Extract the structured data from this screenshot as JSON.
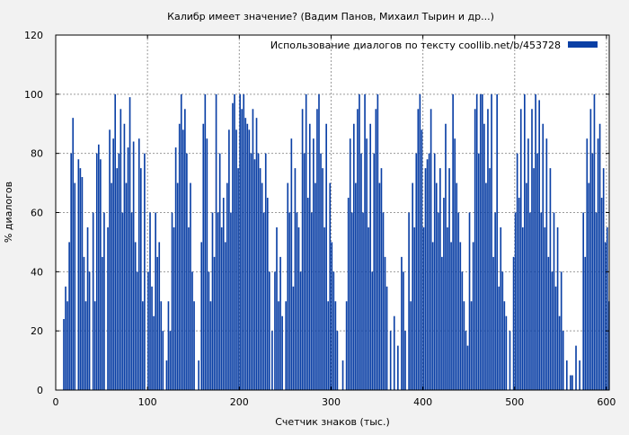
{
  "chart_data": {
    "type": "bar",
    "title": "Калибр имеет значение? (Вадим Панов, Михаил Тырин и др...)",
    "xlabel": "Счетчик знаков (тыс.)",
    "ylabel": "% диалогов",
    "xlim": [
      0,
      603
    ],
    "ylim": [
      0,
      120
    ],
    "xticks": [
      0,
      100,
      200,
      300,
      400,
      500,
      600
    ],
    "yticks": [
      0,
      20,
      40,
      60,
      80,
      100,
      120
    ],
    "grid": true,
    "legend_position": "top-right",
    "series": [
      {
        "name": "Использование диалогов по тексту  coollib.net/b/453728",
        "color": "#0a3fa5",
        "points": [
          [
            8,
            24
          ],
          [
            10,
            35
          ],
          [
            12,
            30
          ],
          [
            14,
            50
          ],
          [
            16,
            80
          ],
          [
            18,
            92
          ],
          [
            20,
            70
          ],
          [
            24,
            78
          ],
          [
            26,
            75
          ],
          [
            28,
            72
          ],
          [
            30,
            45
          ],
          [
            32,
            30
          ],
          [
            34,
            55
          ],
          [
            36,
            40
          ],
          [
            40,
            60
          ],
          [
            42,
            30
          ],
          [
            44,
            80
          ],
          [
            46,
            83
          ],
          [
            48,
            78
          ],
          [
            50,
            45
          ],
          [
            52,
            60
          ],
          [
            56,
            55
          ],
          [
            58,
            88
          ],
          [
            60,
            70
          ],
          [
            62,
            85
          ],
          [
            64,
            100
          ],
          [
            66,
            75
          ],
          [
            68,
            80
          ],
          [
            70,
            95
          ],
          [
            72,
            60
          ],
          [
            74,
            90
          ],
          [
            76,
            70
          ],
          [
            78,
            82
          ],
          [
            80,
            99
          ],
          [
            82,
            60
          ],
          [
            84,
            84
          ],
          [
            86,
            50
          ],
          [
            88,
            40
          ],
          [
            90,
            85
          ],
          [
            92,
            75
          ],
          [
            94,
            30
          ],
          [
            96,
            80
          ],
          [
            100,
            40
          ],
          [
            102,
            60
          ],
          [
            104,
            35
          ],
          [
            106,
            25
          ],
          [
            108,
            60
          ],
          [
            110,
            45
          ],
          [
            112,
            50
          ],
          [
            114,
            30
          ],
          [
            116,
            20
          ],
          [
            120,
            10
          ],
          [
            122,
            30
          ],
          [
            124,
            20
          ],
          [
            126,
            60
          ],
          [
            128,
            55
          ],
          [
            130,
            82
          ],
          [
            132,
            70
          ],
          [
            134,
            90
          ],
          [
            136,
            100
          ],
          [
            138,
            88
          ],
          [
            140,
            95
          ],
          [
            142,
            80
          ],
          [
            144,
            55
          ],
          [
            146,
            70
          ],
          [
            148,
            40
          ],
          [
            150,
            30
          ],
          [
            155,
            10
          ],
          [
            158,
            50
          ],
          [
            160,
            90
          ],
          [
            162,
            100
          ],
          [
            164,
            85
          ],
          [
            166,
            40
          ],
          [
            168,
            30
          ],
          [
            170,
            60
          ],
          [
            172,
            45
          ],
          [
            174,
            100
          ],
          [
            176,
            60
          ],
          [
            178,
            80
          ],
          [
            180,
            55
          ],
          [
            182,
            65
          ],
          [
            184,
            50
          ],
          [
            186,
            70
          ],
          [
            188,
            88
          ],
          [
            190,
            60
          ],
          [
            192,
            97
          ],
          [
            194,
            100
          ],
          [
            196,
            88
          ],
          [
            198,
            75
          ],
          [
            200,
            100
          ],
          [
            202,
            95
          ],
          [
            204,
            100
          ],
          [
            206,
            92
          ],
          [
            208,
            90
          ],
          [
            210,
            88
          ],
          [
            212,
            80
          ],
          [
            214,
            95
          ],
          [
            216,
            78
          ],
          [
            218,
            92
          ],
          [
            220,
            80
          ],
          [
            222,
            75
          ],
          [
            224,
            70
          ],
          [
            226,
            60
          ],
          [
            228,
            80
          ],
          [
            230,
            65
          ],
          [
            232,
            40
          ],
          [
            235,
            20
          ],
          [
            238,
            40
          ],
          [
            240,
            55
          ],
          [
            242,
            30
          ],
          [
            244,
            45
          ],
          [
            246,
            25
          ],
          [
            250,
            30
          ],
          [
            252,
            70
          ],
          [
            254,
            60
          ],
          [
            256,
            85
          ],
          [
            258,
            35
          ],
          [
            260,
            75
          ],
          [
            262,
            60
          ],
          [
            264,
            55
          ],
          [
            266,
            40
          ],
          [
            268,
            95
          ],
          [
            270,
            80
          ],
          [
            272,
            100
          ],
          [
            274,
            65
          ],
          [
            276,
            90
          ],
          [
            278,
            60
          ],
          [
            280,
            85
          ],
          [
            282,
            70
          ],
          [
            284,
            95
          ],
          [
            286,
            100
          ],
          [
            288,
            80
          ],
          [
            290,
            75
          ],
          [
            292,
            55
          ],
          [
            294,
            90
          ],
          [
            296,
            30
          ],
          [
            298,
            70
          ],
          [
            300,
            50
          ],
          [
            302,
            40
          ],
          [
            304,
            30
          ],
          [
            306,
            20
          ],
          [
            312,
            10
          ],
          [
            316,
            30
          ],
          [
            318,
            65
          ],
          [
            320,
            85
          ],
          [
            322,
            60
          ],
          [
            324,
            90
          ],
          [
            326,
            70
          ],
          [
            328,
            95
          ],
          [
            330,
            100
          ],
          [
            332,
            80
          ],
          [
            334,
            60
          ],
          [
            336,
            100
          ],
          [
            338,
            85
          ],
          [
            340,
            55
          ],
          [
            342,
            90
          ],
          [
            344,
            40
          ],
          [
            346,
            80
          ],
          [
            348,
            95
          ],
          [
            350,
            100
          ],
          [
            352,
            70
          ],
          [
            354,
            75
          ],
          [
            356,
            60
          ],
          [
            358,
            45
          ],
          [
            360,
            35
          ],
          [
            364,
            20
          ],
          [
            368,
            25
          ],
          [
            372,
            15
          ],
          [
            376,
            45
          ],
          [
            378,
            40
          ],
          [
            380,
            20
          ],
          [
            384,
            60
          ],
          [
            386,
            30
          ],
          [
            388,
            70
          ],
          [
            390,
            55
          ],
          [
            392,
            80
          ],
          [
            394,
            95
          ],
          [
            396,
            100
          ],
          [
            398,
            88
          ],
          [
            400,
            55
          ],
          [
            402,
            75
          ],
          [
            404,
            78
          ],
          [
            406,
            80
          ],
          [
            408,
            95
          ],
          [
            410,
            50
          ],
          [
            412,
            80
          ],
          [
            414,
            70
          ],
          [
            416,
            60
          ],
          [
            418,
            75
          ],
          [
            420,
            45
          ],
          [
            422,
            65
          ],
          [
            424,
            90
          ],
          [
            426,
            55
          ],
          [
            428,
            75
          ],
          [
            430,
            50
          ],
          [
            432,
            100
          ],
          [
            434,
            85
          ],
          [
            436,
            70
          ],
          [
            438,
            60
          ],
          [
            440,
            50
          ],
          [
            442,
            40
          ],
          [
            444,
            30
          ],
          [
            446,
            20
          ],
          [
            448,
            15
          ],
          [
            450,
            60
          ],
          [
            452,
            30
          ],
          [
            454,
            50
          ],
          [
            456,
            95
          ],
          [
            458,
            100
          ],
          [
            460,
            80
          ],
          [
            462,
            100
          ],
          [
            464,
            100
          ],
          [
            466,
            90
          ],
          [
            468,
            70
          ],
          [
            470,
            95
          ],
          [
            472,
            75
          ],
          [
            474,
            100
          ],
          [
            476,
            45
          ],
          [
            478,
            60
          ],
          [
            480,
            100
          ],
          [
            482,
            35
          ],
          [
            484,
            55
          ],
          [
            486,
            40
          ],
          [
            488,
            30
          ],
          [
            490,
            25
          ],
          [
            494,
            20
          ],
          [
            498,
            45
          ],
          [
            500,
            60
          ],
          [
            502,
            80
          ],
          [
            504,
            65
          ],
          [
            506,
            95
          ],
          [
            508,
            55
          ],
          [
            510,
            100
          ],
          [
            512,
            70
          ],
          [
            514,
            85
          ],
          [
            516,
            60
          ],
          [
            518,
            95
          ],
          [
            520,
            75
          ],
          [
            522,
            100
          ],
          [
            524,
            80
          ],
          [
            526,
            98
          ],
          [
            528,
            60
          ],
          [
            530,
            90
          ],
          [
            532,
            55
          ],
          [
            534,
            85
          ],
          [
            536,
            45
          ],
          [
            538,
            75
          ],
          [
            540,
            40
          ],
          [
            542,
            60
          ],
          [
            544,
            35
          ],
          [
            546,
            55
          ],
          [
            548,
            25
          ],
          [
            550,
            40
          ],
          [
            552,
            20
          ],
          [
            556,
            10
          ],
          [
            560,
            5
          ],
          [
            562,
            5
          ],
          [
            566,
            15
          ],
          [
            570,
            10
          ],
          [
            574,
            60
          ],
          [
            576,
            45
          ],
          [
            578,
            85
          ],
          [
            580,
            70
          ],
          [
            582,
            95
          ],
          [
            584,
            80
          ],
          [
            586,
            100
          ],
          [
            588,
            60
          ],
          [
            590,
            85
          ],
          [
            592,
            90
          ],
          [
            594,
            65
          ],
          [
            596,
            75
          ],
          [
            598,
            50
          ],
          [
            600,
            55
          ],
          [
            602,
            30
          ]
        ]
      }
    ]
  }
}
